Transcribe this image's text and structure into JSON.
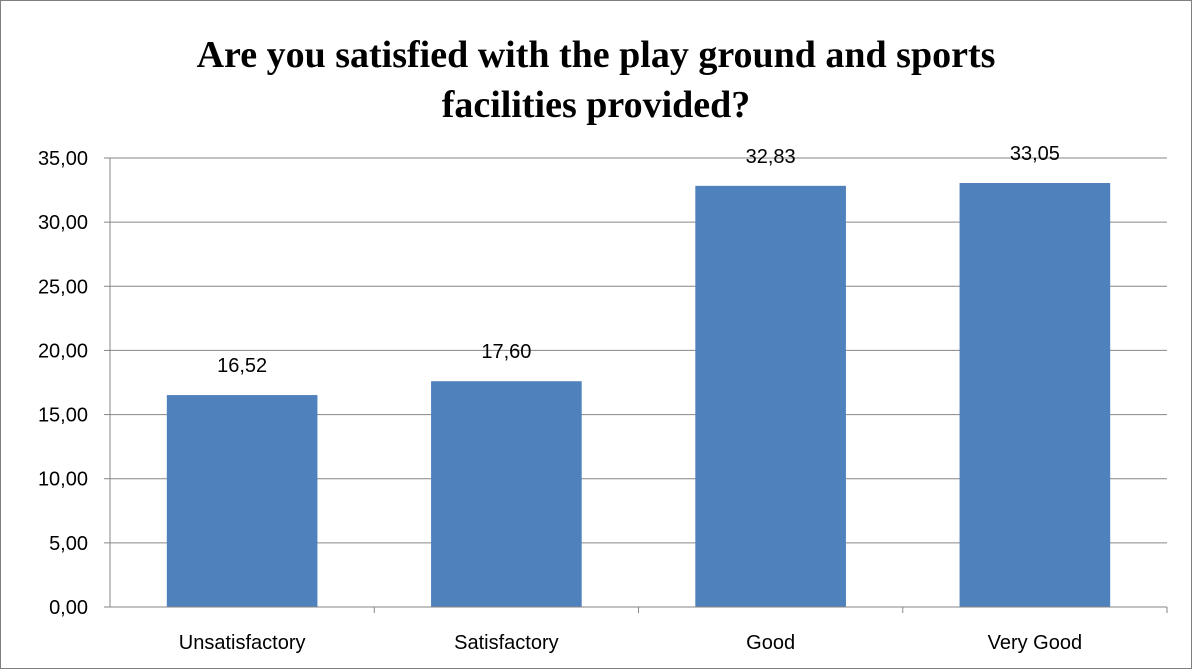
{
  "chart_data": {
    "type": "bar",
    "title_lines": [
      "Are you satisfied with the play ground and sports",
      "facilities provided?"
    ],
    "categories": [
      "Unsatisfactory",
      "Satisfactory",
      "Good",
      "Very Good"
    ],
    "values": [
      16.52,
      17.6,
      32.83,
      33.05
    ],
    "value_labels": [
      "16,52",
      "17,60",
      "32,83",
      "33,05"
    ],
    "y_ticks": [
      "0,00",
      "5,00",
      "10,00",
      "15,00",
      "20,00",
      "25,00",
      "30,00",
      "35,00"
    ],
    "ylim": [
      0,
      35
    ],
    "grid": true,
    "legend": "none",
    "bar_color": "#4f81bd",
    "grid_color": "#868686"
  }
}
